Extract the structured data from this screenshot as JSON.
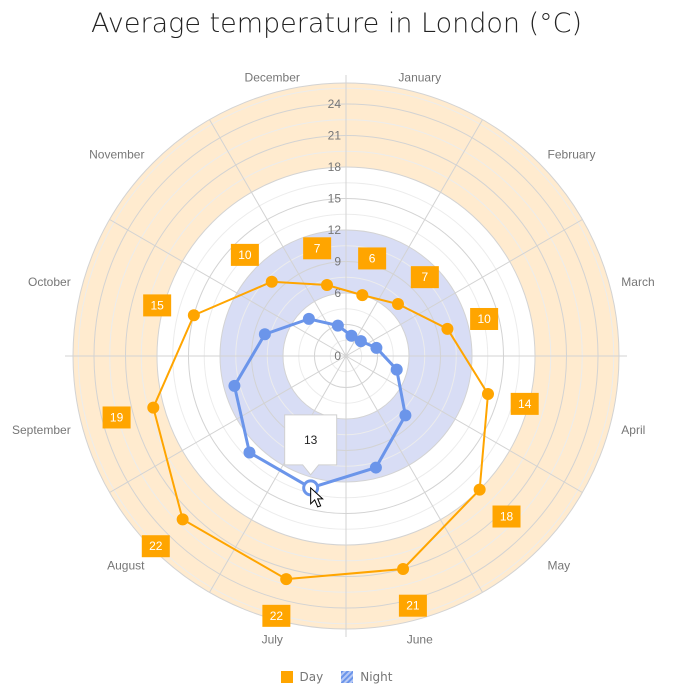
{
  "chart_data": {
    "type": "polar-line",
    "title": "Average temperature in London (°C)",
    "categories": [
      "January",
      "February",
      "March",
      "April",
      "May",
      "June",
      "July",
      "August",
      "September",
      "October",
      "November",
      "December"
    ],
    "series": [
      {
        "name": "Day",
        "color": "#ffa500",
        "values": [
          6,
          7,
          10,
          14,
          18,
          21,
          22,
          22,
          19,
          15,
          10,
          7
        ],
        "labels_shown": true
      },
      {
        "name": "Night",
        "color": "#6b95ea",
        "values": [
          2,
          2,
          3,
          5,
          8,
          11,
          13,
          13,
          11,
          8,
          5,
          3
        ]
      }
    ],
    "value_axis": {
      "min": 0,
      "max": 26,
      "tick_interval": 3,
      "ticks": [
        "0",
        "3",
        "6",
        "9",
        "12",
        "15",
        "18",
        "21",
        "24"
      ]
    },
    "strips": [
      {
        "from": 6,
        "to": 12,
        "color": "#d8ddf5"
      },
      {
        "from": 18,
        "to": 26,
        "color": "#ffebcf"
      }
    ],
    "grid": true,
    "legend_position": "bottom",
    "tooltip": {
      "series": "Night",
      "category": "July",
      "text": "13"
    }
  }
}
